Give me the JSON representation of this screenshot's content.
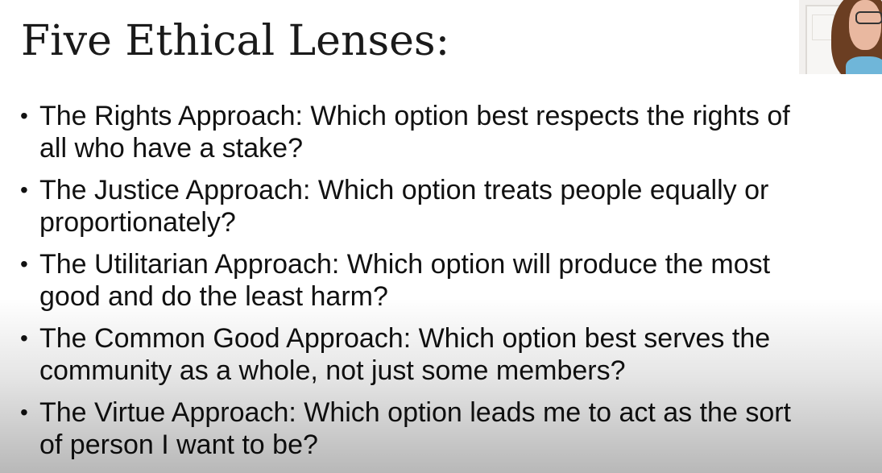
{
  "slide": {
    "title": "Five Ethical Lenses:",
    "bullet_glyph": "•",
    "bullets": [
      {
        "line1": "The Rights Approach: Which option best respects the rights of",
        "line2": "all who have a stake?"
      },
      {
        "line1": "The Justice Approach: Which option treats people equally or",
        "line2": "proportionately?"
      },
      {
        "line1": "The Utilitarian Approach: Which option will produce the most",
        "line2": "good and do the least harm?"
      },
      {
        "line1": "The Common Good Approach: Which option best serves the",
        "line2": "community as a whole, not just some members?"
      },
      {
        "line1": "The Virtue Approach: Which option leads me to act as the sort",
        "line2": "of person I want to be?"
      }
    ]
  },
  "webcam": {
    "icon": "presenter-webcam-thumbnail"
  },
  "colors": {
    "background": "#ffffff",
    "text": "#111111",
    "title_text": "#1a1a1a"
  }
}
